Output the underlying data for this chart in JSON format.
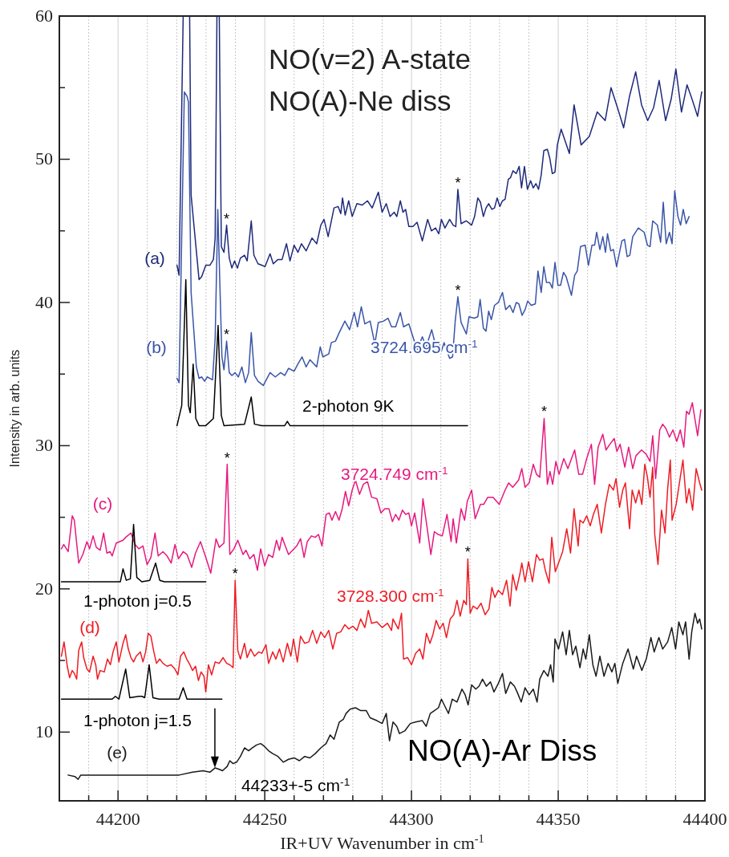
{
  "chart_data": {
    "type": "line",
    "title": "NO(v=2)  A-state",
    "subtitle": "NO(A)-Ne diss",
    "xlabel": "IR+UV Wavenumber in cm$^{-1}$",
    "ylabel": "Intensity in arb. units",
    "xlim": [
      44180,
      44400
    ],
    "xticks": [
      {
        "value": 44190,
        "label": null
      },
      44200,
      {
        "value": 44210,
        "label": null
      },
      {
        "value": 44220,
        "label": null
      },
      {
        "value": 44230,
        "label": null
      },
      {
        "value": 44240,
        "label": null
      },
      44250,
      {
        "value": 44260,
        "label": null
      },
      {
        "value": 44270,
        "label": null
      },
      {
        "value": 44280,
        "label": null
      },
      {
        "value": 44290,
        "label": null
      },
      44300,
      {
        "value": 44310,
        "label": null
      },
      {
        "value": 44320,
        "label": null
      },
      {
        "value": 44330,
        "label": null
      },
      {
        "value": 44340,
        "label": null
      },
      44350,
      {
        "value": 44360,
        "label": null
      },
      {
        "value": 44370,
        "label": null
      },
      {
        "value": 44380,
        "label": null
      },
      {
        "value": 44390,
        "label": null
      },
      44400
    ],
    "ylim": [
      5.2,
      60
    ],
    "yticks": [
      10,
      {
        "value": 15,
        "label": null
      },
      20,
      {
        "value": 25,
        "label": null
      },
      30,
      {
        "value": 35,
        "label": null
      },
      40,
      {
        "value": 45,
        "label": null
      },
      50,
      {
        "value": 55,
        "label": null
      },
      60
    ],
    "grid": "x",
    "line_style": "solid",
    "marker": "none",
    "series": [
      {
        "name": "(a)",
        "color": "#1f2a7a",
        "x": [
          44220.1,
          44220.8,
          44222.2,
          44224.4,
          44224.9,
          44227.6,
          44228.5,
          44229.9,
          44231.3,
          44232.5,
          44233.1,
          44233.7,
          44234.5,
          44235.2,
          44236.1,
          44237.0,
          44237.9,
          44238.8,
          44239.7,
          44240.7,
          44241.7,
          44243.1,
          44244.0,
          44245.4,
          44246.3,
          44247.7,
          44249.0,
          44250.1,
          44251.8,
          44252.9,
          44254.5,
          44255.9,
          44257.4,
          44258.6,
          44260.0,
          44261.3,
          44262.5,
          44264.1,
          44266.1,
          44267.7,
          44269.1,
          44270.2,
          44271.6,
          44273.6,
          44275.0,
          44275.9,
          44276.5,
          44277.4,
          44278.6,
          44279.8,
          44281.4,
          44283.2,
          44285.0,
          44286.6,
          44288.7,
          44290.0,
          44291.4,
          44292.7,
          44294.1,
          44295.0,
          44296.2,
          44297.1,
          44298.0,
          44299.1,
          44300.5,
          44301.9,
          44303.7,
          44305.5,
          44306.8,
          44308.2,
          44309.3,
          44310.2,
          44311.4,
          44313.0,
          44314.2,
          44315.1,
          44315.8,
          44316.9,
          44318.7,
          44320.5,
          44321.5,
          44322.6,
          44323.5,
          44324.5,
          44325.4,
          44326.3,
          44327.4,
          44328.3,
          44329.2,
          44330.1,
          44331.0,
          44331.9,
          44333.0,
          44333.7,
          44334.6,
          44335.7,
          44336.7,
          44337.5,
          44338.5,
          44339.5,
          44340.6,
          44341.5,
          44342.4,
          44343.3,
          44344.2,
          44345.1,
          44346.3,
          44347.1,
          44348.0,
          44348.9,
          44349.7,
          44351.0,
          44353.8,
          44355.4,
          44357.8,
          44360.6,
          44363.3,
          44366.0,
          44368.0,
          44370.2,
          44372.3,
          44374.3,
          44376.4,
          44378.4,
          44380.5,
          44382.5,
          44384.4,
          44386.6,
          44388.5,
          44390.1,
          44392.0,
          44393.9,
          44395.6,
          44397.5,
          44398.9
        ],
        "values": [
          42.6,
          41.9,
          60,
          60,
          47.5,
          41.6,
          41.8,
          42.6,
          42.6,
          43.0,
          44.5,
          60,
          60,
          43.9,
          43.5,
          45.4,
          43.1,
          42.4,
          42.9,
          42.4,
          43.1,
          43.3,
          42.9,
          45.7,
          43.3,
          42.7,
          42.6,
          42.5,
          43.4,
          42.7,
          43.0,
          43.0,
          44.1,
          42.9,
          44.0,
          43.5,
          44.1,
          43.6,
          44.5,
          44.1,
          45.4,
          45.8,
          44.6,
          46.6,
          46.7,
          46.2,
          47.3,
          46.1,
          47.1,
          46.0,
          46.9,
          46.8,
          47.1,
          46.6,
          47.7,
          46.3,
          46.9,
          46.0,
          46.3,
          46.0,
          47.1,
          46.3,
          46.5,
          45.3,
          45.3,
          45.6,
          44.3,
          45.8,
          45.0,
          45.2,
          44.8,
          45.8,
          45.2,
          45.8,
          45.4,
          45.3,
          47.9,
          45.5,
          45.7,
          45.4,
          46.0,
          47.3,
          47.0,
          46.0,
          46.6,
          46.9,
          46.5,
          46.6,
          47.3,
          46.7,
          47.1,
          47.2,
          48.6,
          48.7,
          49.2,
          49.0,
          49.5,
          48.0,
          49.5,
          47.9,
          48.5,
          48.0,
          48.3,
          47.9,
          48.9,
          50.6,
          50.7,
          50.1,
          49.0,
          49.1,
          51.0,
          52.1,
          50.4,
          53.8,
          51.0,
          51.6,
          53.3,
          52.7,
          55.0,
          53.6,
          52.2,
          54.4,
          56.1,
          53.8,
          52.7,
          53.6,
          55.5,
          52.7,
          54.2,
          56.3,
          53.3,
          55.2,
          54.2,
          53.0,
          54.7
        ]
      },
      {
        "name": "(b)",
        "color": "#3a55a8",
        "x": [
          44220.1,
          44220.8,
          44222.6,
          44223.5,
          44224.0,
          44224.9,
          44226.7,
          44227.6,
          44228.5,
          44229.5,
          44230.4,
          44232.2,
          44233.1,
          44234.0,
          44234.7,
          44235.4,
          44236.1,
          44237.0,
          44237.9,
          44238.8,
          44239.9,
          44241.0,
          44242.2,
          44243.4,
          44244.5,
          44245.4,
          44246.5,
          44247.7,
          44249.5,
          44251.8,
          44253.6,
          44255.4,
          44256.8,
          44258.1,
          44260.0,
          44261.3,
          44262.7,
          44264.1,
          44265.4,
          44267.7,
          44268.9,
          44269.8,
          44271.8,
          44272.7,
          44274.1,
          44275.4,
          44277.3,
          44278.9,
          44280.5,
          44281.6,
          44282.9,
          44284.1,
          44285.9,
          44287.5,
          44288.7,
          44290.5,
          44292.0,
          44293.2,
          44294.6,
          44296.2,
          44297.3,
          44299.1,
          44301.9,
          44303.7,
          44305.0,
          44306.9,
          44308.2,
          44309.3,
          44310.2,
          44311.1,
          44312.1,
          44313.0,
          44314.0,
          44314.9,
          44315.8,
          44316.9,
          44318.7,
          44319.6,
          44321.4,
          44322.6,
          44323.4,
          44324.5,
          44325.4,
          44326.3,
          44327.2,
          44328.3,
          44329.6,
          44331.0,
          44332.1,
          44333.5,
          44334.6,
          44335.7,
          44336.6,
          44337.7,
          44338.7,
          44339.6,
          44340.8,
          44342.2,
          44343.1,
          44344.2,
          44345.1,
          44346.0,
          44347.1,
          44348.0,
          44348.9,
          44349.9,
          44350.8,
          44351.8,
          44352.7,
          44354.5,
          44355.6,
          44356.5,
          44357.6,
          44359.2,
          44360.3,
          44361.5,
          44362.4,
          44363.1,
          44364.2,
          44365.2,
          44366.1,
          44366.8,
          44367.9,
          44368.8,
          44369.9,
          44371.7,
          44372.6,
          44373.5,
          44374.4,
          44375.4,
          44377.3,
          44379.3,
          44380.4,
          44381.3,
          44382.2,
          44383.8,
          44384.9,
          44385.8,
          44386.8,
          44387.9,
          44388.8,
          44389.7,
          44390.8,
          44391.7,
          44392.6,
          44393.6,
          44394.6
        ],
        "values": [
          34.7,
          34.4,
          54.7,
          54.4,
          54.0,
          40.7,
          35.5,
          34.7,
          34.8,
          34.5,
          34.8,
          34.6,
          37.5,
          46.5,
          41.3,
          36.2,
          35.3,
          37.3,
          35.1,
          34.9,
          35.1,
          34.8,
          35.5,
          34.4,
          35.1,
          37.9,
          34.9,
          34.5,
          34.2,
          35.1,
          34.8,
          35.1,
          34.9,
          35.4,
          35.2,
          35.7,
          36.2,
          35.5,
          36.0,
          35.5,
          36.9,
          36.2,
          36.4,
          37.2,
          37.3,
          37.9,
          38.7,
          38.1,
          39.3,
          38.3,
          39.7,
          38.5,
          38.7,
          37.1,
          38.6,
          38.7,
          38.9,
          38.3,
          38.3,
          39.3,
          38.3,
          38.5,
          36.7,
          37.6,
          36.9,
          38.1,
          37.0,
          37.2,
          36.6,
          37.2,
          36.6,
          36.1,
          36.2,
          38.7,
          40.4,
          38.6,
          37.8,
          39.0,
          38.9,
          39.0,
          40.2,
          38.2,
          38.0,
          39.4,
          38.8,
          39.8,
          40.0,
          40.7,
          39.5,
          39.8,
          39.3,
          40.0,
          39.9,
          39.1,
          39.5,
          40.1,
          39.8,
          39.9,
          42.2,
          40.7,
          42.5,
          41.4,
          41.4,
          41.0,
          42.8,
          41.2,
          41.2,
          42.1,
          41.8,
          40.5,
          41.9,
          42.2,
          43.9,
          44.0,
          42.6,
          44.0,
          44.0,
          44.9,
          43.7,
          44.6,
          43.5,
          44.8,
          43.6,
          43.7,
          42.5,
          44.3,
          44.4,
          43.2,
          43.3,
          44.6,
          45.2,
          44.9,
          44.0,
          43.9,
          45.7,
          45.4,
          44.2,
          47.0,
          44.1,
          44.9,
          44.1,
          47.8,
          46.0,
          45.4,
          46.5,
          45.5,
          46.0
        ]
      },
      {
        "name": "2-photon 9K",
        "color": "#000000",
        "x": [
          44220.1,
          44221.7,
          44223.1,
          44224.0,
          44224.6,
          44225.6,
          44226.5,
          44227.6,
          44229.9,
          44232.5,
          44234.1,
          44235.2,
          44236.1,
          44243.1,
          44245.4,
          44246.5,
          44249.0,
          44256.8,
          44257.7,
          44258.6,
          44319.1
        ],
        "values": [
          31.4,
          32.8,
          41.6,
          32.8,
          32.3,
          35.7,
          31.9,
          31.4,
          31.4,
          31.9,
          38.4,
          32.1,
          31.4,
          31.5,
          33.4,
          31.5,
          31.4,
          31.4,
          31.7,
          31.4,
          31.4
        ]
      },
      {
        "name": "(c)",
        "color": "#e6197f",
        "x": [
          44180.7,
          44181.5,
          44183.0,
          44184.4,
          44185.1,
          44186.6,
          44188.0,
          44189.4,
          44190.3,
          44191.5,
          44192.6,
          44193.9,
          44195.1,
          44196.2,
          44197.3,
          44198.0,
          44199.4,
          44201.7,
          44202.6,
          44204.4,
          44205.8,
          44207.1,
          44208.5,
          44209.9,
          44211.2,
          44212.6,
          44213.7,
          44215.3,
          44216.7,
          44218.1,
          44219.4,
          44220.6,
          44222.2,
          44223.5,
          44225.1,
          44226.4,
          44228.1,
          44229.9,
          44231.6,
          44233.4,
          44234.5,
          44236.1,
          44237.2,
          44238.1,
          44239.5,
          44240.8,
          44242.6,
          44243.6,
          44244.9,
          44246.3,
          44247.5,
          44248.6,
          44250.0,
          44251.3,
          44252.7,
          44254.0,
          44255.0,
          44255.9,
          44256.8,
          44258.1,
          44259.5,
          44260.9,
          44262.2,
          44263.4,
          44264.5,
          44265.9,
          44267.2,
          44268.3,
          44269.5,
          44270.9,
          44272.0,
          44272.9,
          44274.1,
          44275.3,
          44276.4,
          44277.5,
          44278.6,
          44279.8,
          44280.9,
          44282.3,
          44283.6,
          44285.0,
          44286.4,
          44288.2,
          44289.6,
          44290.9,
          44292.3,
          44293.5,
          44294.6,
          44295.7,
          44296.9,
          44298.0,
          44299.1,
          44300.0,
          44301.1,
          44302.8,
          44303.9,
          44305.1,
          44306.6,
          44307.8,
          44309.1,
          44310.5,
          44312.1,
          44313.5,
          44314.2,
          44315.3,
          44316.9,
          44318.1,
          44319.0,
          44320.5,
          44321.7,
          44323.5,
          44324.6,
          44326.0,
          44327.8,
          44329.9,
          44331.9,
          44333.1,
          44334.5,
          44336.5,
          44337.6,
          44338.7,
          44340.1,
          44341.5,
          44342.6,
          44343.7,
          44345.2,
          44346.3,
          44347.2,
          44348.1,
          44349.2,
          44350.3,
          44351.9,
          44353.3,
          44355.6,
          44357.0,
          44358.3,
          44359.7,
          44361.3,
          44362.4,
          44363.6,
          44365.2,
          44366.3,
          44367.6,
          44369.1,
          44370.0,
          44371.1,
          44372.7,
          44374.0,
          44375.4,
          44376.5,
          44378.4,
          44380.0,
          44381.3,
          44382.2,
          44383.2,
          44384.6,
          44385.6,
          44386.7,
          44387.9,
          44389.1,
          44390.4,
          44391.6,
          44392.8,
          44393.7,
          44394.6,
          44395.7,
          44397.5,
          44398.6
        ],
        "values": [
          22.8,
          23.1,
          22.6,
          25.1,
          24.8,
          21.8,
          22.4,
          23.3,
          22.8,
          23.7,
          22.9,
          22.7,
          23.9,
          22.5,
          22.6,
          22.3,
          23.2,
          23.4,
          23.6,
          23.9,
          23.1,
          22.8,
          23.0,
          21.7,
          22.2,
          23.9,
          22.3,
          22.6,
          22.3,
          21.8,
          23.1,
          22.1,
          22.6,
          22.4,
          21.5,
          22.5,
          23.3,
          22.2,
          21.1,
          23.5,
          22.9,
          23.2,
          28.7,
          22.4,
          22.8,
          23.4,
          22.4,
          22.7,
          22.1,
          22.4,
          21.3,
          22.8,
          21.6,
          22.4,
          22.2,
          23.4,
          22.7,
          23.6,
          23.1,
          22.4,
          22.7,
          23.0,
          23.5,
          22.2,
          23.3,
          23.7,
          23.6,
          23.8,
          23.0,
          25.2,
          25.3,
          24.8,
          25.4,
          24.8,
          25.6,
          26.8,
          25.8,
          26.9,
          27.6,
          26.6,
          27.3,
          27.5,
          26.4,
          26.3,
          25.3,
          25.6,
          25.6,
          24.7,
          25.2,
          24.8,
          25.5,
          25.2,
          25.3,
          24.4,
          25.3,
          23.2,
          26.3,
          24.6,
          22.4,
          24.0,
          23.8,
          23.7,
          25.2,
          23.3,
          24.9,
          23.2,
          25.6,
          24.8,
          26.1,
          26.9,
          24.9,
          25.9,
          25.9,
          26.4,
          26.4,
          25.9,
          26.9,
          27.4,
          27.1,
          27.6,
          28.4,
          27.1,
          27.4,
          28.7,
          28.0,
          27.8,
          31.9,
          27.3,
          28.2,
          27.3,
          28.9,
          28.0,
          29.1,
          28.4,
          29.7,
          28.0,
          28.0,
          29.1,
          30.1,
          27.3,
          29.9,
          30.8,
          29.7,
          30.1,
          30.5,
          29.6,
          30.1,
          28.5,
          29.9,
          28.4,
          29.3,
          29.7,
          29.4,
          28.9,
          30.7,
          27.7,
          31.1,
          31.5,
          31.2,
          30.6,
          31.1,
          30.3,
          31.1,
          29.9,
          32.4,
          32.2,
          33.0,
          30.7,
          32.5
        ]
      },
      {
        "name": "1-photon j=0.5",
        "color": "#000000",
        "x": [
          44180.7,
          44200.8,
          44201.7,
          44202.8,
          44204.2,
          44205.3,
          44206.4,
          44208.1,
          44210.8,
          44212.8,
          44214.2,
          44215.8,
          44229.9
        ],
        "values": [
          20.5,
          20.5,
          21.4,
          20.6,
          20.7,
          24.5,
          20.8,
          20.5,
          20.6,
          21.8,
          20.6,
          20.5,
          20.5
        ]
      },
      {
        "name": "(d)",
        "color": "#ee1c24",
        "x": [
          44180.7,
          44181.6,
          44182.7,
          44183.5,
          44184.4,
          44185.1,
          44185.9,
          44186.6,
          44187.6,
          44188.3,
          44189.4,
          44190.3,
          44191.5,
          44192.4,
          44193.0,
          44193.9,
          44195.3,
          44196.4,
          44197.4,
          44198.3,
          44199.4,
          44200.3,
          44201.7,
          44202.6,
          44203.5,
          44204.4,
          44205.3,
          44206.2,
          44207.6,
          44208.5,
          44209.4,
          44210.3,
          44211.2,
          44212.2,
          44213.1,
          44214.2,
          44215.3,
          44216.7,
          44218.1,
          44219.4,
          44220.4,
          44221.3,
          44222.4,
          44223.4,
          44224.5,
          44225.4,
          44226.4,
          44227.4,
          44228.3,
          44229.3,
          44229.9,
          44230.8,
          44231.9,
          44233.1,
          44234.5,
          44235.8,
          44237.0,
          44238.1,
          44239.2,
          44239.9,
          44240.8,
          44241.7,
          44243.1,
          44244.0,
          44245.2,
          44246.5,
          44247.9,
          44249.0,
          44250.4,
          44251.3,
          44252.7,
          44253.8,
          44255.0,
          44256.3,
          44257.7,
          44258.9,
          44259.8,
          44261.1,
          44262.2,
          44263.6,
          44265.0,
          44266.3,
          44267.7,
          44269.1,
          44270.4,
          44271.8,
          44273.2,
          44274.5,
          44275.9,
          44277.3,
          44278.6,
          44280.0,
          44281.4,
          44282.7,
          44284.1,
          44285.3,
          44286.4,
          44288.2,
          44290.0,
          44291.8,
          44293.2,
          44293.7,
          44295.5,
          44296.6,
          44297.3,
          44298.7,
          44300.0,
          44301.4,
          44302.8,
          44303.9,
          44305.1,
          44306.3,
          44307.3,
          44308.4,
          44309.6,
          44310.8,
          44311.9,
          44313.2,
          44314.4,
          44315.5,
          44316.6,
          44317.8,
          44318.7,
          44319.2,
          44320.0,
          44321.0,
          44322.4,
          44323.7,
          44325.1,
          44326.4,
          44327.4,
          44328.4,
          44329.6,
          44331.0,
          44332.4,
          44333.6,
          44334.5,
          44335.7,
          44336.9,
          44337.6,
          44338.7,
          44339.9,
          44341.2,
          44342.6,
          44343.7,
          44344.8,
          44345.6,
          44346.9,
          44347.8,
          44349.0,
          44350.1,
          44351.5,
          44352.9,
          44354.2,
          44355.4,
          44356.8,
          44357.4,
          44358.5,
          44359.7,
          44360.9,
          44362.0,
          44363.3,
          44364.7,
          44366.1,
          44367.4,
          44368.8,
          44369.7,
          44370.9,
          44372.0,
          44372.9,
          44374.3,
          44375.2,
          44376.4,
          44377.5,
          44378.5,
          44379.5,
          44380.4,
          44381.3,
          44382.2,
          44382.9,
          44384.0,
          44385.2,
          44386.4,
          44387.3,
          44388.2,
          44388.8,
          44390.2,
          44391.3,
          44392.5,
          44393.7,
          44394.6,
          44395.8,
          44397.0,
          44398.2,
          44398.9
        ],
        "values": [
          15.3,
          16.3,
          14.6,
          13.8,
          14.3,
          14.1,
          13.7,
          15.7,
          16.3,
          15.2,
          14.4,
          14.2,
          15.3,
          14.7,
          13.7,
          14.3,
          14.2,
          15.1,
          14.7,
          15.6,
          16.3,
          14.9,
          16.2,
          16.8,
          15.8,
          15.2,
          14.9,
          15.3,
          15.6,
          14.9,
          15.6,
          16.9,
          16.7,
          15.6,
          14.8,
          15.1,
          14.8,
          14.6,
          14.7,
          14.4,
          14.0,
          15.3,
          15.6,
          15.1,
          14.7,
          14.3,
          14.6,
          13.6,
          14.2,
          13.9,
          12.8,
          14.7,
          14.0,
          14.9,
          14.8,
          15.2,
          14.8,
          14.7,
          14.5,
          20.6,
          15.7,
          15.1,
          16.2,
          15.2,
          15.8,
          15.3,
          15.6,
          15.5,
          16.1,
          14.8,
          15.6,
          15.1,
          15.8,
          14.9,
          16.2,
          15.3,
          16.5,
          14.9,
          16.7,
          16.2,
          16.3,
          17.1,
          16.2,
          17.0,
          16.6,
          17.1,
          15.8,
          16.9,
          17.0,
          17.5,
          17.2,
          17.4,
          17.1,
          17.9,
          17.3,
          18.5,
          17.6,
          17.7,
          17.3,
          17.6,
          17.1,
          17.9,
          17.2,
          18.3,
          15.1,
          15.2,
          14.7,
          15.5,
          15.8,
          15.1,
          16.9,
          16.2,
          16.8,
          17.8,
          17.2,
          17.6,
          16.6,
          17.9,
          18.2,
          19.2,
          18.1,
          19.2,
          18.9,
          22.1,
          18.3,
          18.8,
          18.6,
          19.0,
          18.2,
          18.6,
          20.1,
          19.4,
          19.9,
          19.6,
          20.6,
          18.8,
          21.0,
          19.9,
          21.0,
          21.8,
          20.5,
          21.9,
          20.5,
          22.4,
          22.0,
          22.1,
          21.3,
          20.4,
          23.6,
          21.2,
          21.8,
          22.6,
          24.2,
          22.5,
          25.6,
          23.0,
          24.8,
          24.6,
          25.1,
          24.4,
          25.2,
          25.9,
          23.9,
          25.9,
          27.3,
          26.9,
          27.7,
          25.7,
          26.9,
          27.4,
          24.2,
          26.9,
          26.0,
          26.9,
          25.9,
          28.7,
          27.8,
          26.4,
          28.5,
          23.8,
          21.7,
          25.5,
          23.9,
          27.0,
          29.0,
          24.8,
          25.9,
          27.4,
          29.0,
          26.0,
          27.0,
          25.5,
          28.4,
          27.4,
          26.9
        ]
      },
      {
        "name": "1-photon j=1.5",
        "color": "#000000",
        "x": [
          44180.7,
          44198.0,
          44199.1,
          44200.3,
          44202.6,
          44204.0,
          44207.1,
          44208.2,
          44209.1,
          44210.6,
          44211.9,
          44214.0,
          44220.8,
          44222.2,
          44223.5,
          44235.4
        ],
        "values": [
          12.3,
          12.3,
          12.5,
          12.3,
          14.4,
          12.4,
          12.5,
          12.5,
          12.4,
          14.7,
          12.4,
          12.3,
          12.3,
          13.1,
          12.3,
          12.3
        ]
      },
      {
        "name": "(e)",
        "color": "#1a1a1a",
        "x": [
          44183.0,
          44185.3,
          44186.4,
          44187.3,
          44193.5,
          44202.6,
          44211.7,
          44220.8,
          44225.4,
          44229.0,
          44231.3,
          44233.1,
          44234.5,
          44235.6,
          44237.2,
          44238.1,
          44239.2,
          44240.4,
          44241.7,
          44243.1,
          44244.5,
          44245.8,
          44247.2,
          44248.6,
          44249.9,
          44251.3,
          44252.7,
          44254.5,
          44256.3,
          44258.1,
          44260.0,
          44261.8,
          44263.6,
          44265.4,
          44267.2,
          44269.1,
          44270.9,
          44272.3,
          44273.6,
          44275.4,
          44276.8,
          44277.7,
          44279.1,
          44280.9,
          44282.7,
          44284.6,
          44285.9,
          44288.2,
          44290.0,
          44291.4,
          44292.5,
          44293.7,
          44295.0,
          44295.9,
          44297.8,
          44299.6,
          44301.4,
          44303.7,
          44305.0,
          44306.4,
          44307.8,
          44309.2,
          44310.2,
          44311.4,
          44312.6,
          44313.9,
          44315.5,
          44317.2,
          44318.3,
          44319.3,
          44320.5,
          44321.9,
          44323.0,
          44324.2,
          44325.5,
          44326.9,
          44328.1,
          44329.6,
          44331.0,
          44332.1,
          44333.7,
          44335.1,
          44336.0,
          44337.4,
          44338.7,
          44340.1,
          44341.5,
          44342.8,
          44343.7,
          44345.1,
          44346.5,
          44347.4,
          44348.3,
          44348.9,
          44350.1,
          44351.5,
          44352.7,
          44353.8,
          44354.9,
          44356.0,
          44357.4,
          44358.5,
          44359.4,
          44360.6,
          44361.8,
          44362.9,
          44364.2,
          44365.6,
          44367.0,
          44368.3,
          44369.3,
          44370.3,
          44372.0,
          44373.8,
          44375.6,
          44376.7,
          44378.5,
          44380.0,
          44381.6,
          44382.7,
          44384.3,
          44385.6,
          44387.3,
          44388.7,
          44390.0,
          44391.1,
          44392.5,
          44393.4,
          44394.6,
          44395.5,
          44396.6,
          44397.5,
          44398.2,
          44398.9
        ],
        "values": [
          7.0,
          6.9,
          6.7,
          7.0,
          7.0,
          7.0,
          7.0,
          7.0,
          7.2,
          7.3,
          7.2,
          7.5,
          7.4,
          7.3,
          7.6,
          8.0,
          7.8,
          7.9,
          8.3,
          8.9,
          8.7,
          8.9,
          9.1,
          9.2,
          9.0,
          8.7,
          8.5,
          8.3,
          7.9,
          8.1,
          8.2,
          8.0,
          8.3,
          8.2,
          8.5,
          8.9,
          9.2,
          9.8,
          9.5,
          10.7,
          10.9,
          11.3,
          11.6,
          11.7,
          11.5,
          11.5,
          11.0,
          10.8,
          10.6,
          11.3,
          9.4,
          10.7,
          10.4,
          9.9,
          10.1,
          10.6,
          10.7,
          10.8,
          10.4,
          11.3,
          11.5,
          11.7,
          12.3,
          11.8,
          11.3,
          12.3,
          12.1,
          13.0,
          12.6,
          11.9,
          13.3,
          13.0,
          13.2,
          13.7,
          13.2,
          13.5,
          12.8,
          13.4,
          14.1,
          12.7,
          13.5,
          13.2,
          12.8,
          12.1,
          13.1,
          12.6,
          13.0,
          12.1,
          13.7,
          14.3,
          13.9,
          14.7,
          13.5,
          16.5,
          15.8,
          17.0,
          15.4,
          17.1,
          15.4,
          16.0,
          14.5,
          15.8,
          15.1,
          16.8,
          14.7,
          13.9,
          15.3,
          13.9,
          14.8,
          14.2,
          14.8,
          13.4,
          14.8,
          15.8,
          14.4,
          15.3,
          14.3,
          15.1,
          16.6,
          15.6,
          16.6,
          15.8,
          16.3,
          17.3,
          15.8,
          17.7,
          16.8,
          17.7,
          15.1,
          17.0,
          18.3,
          17.6,
          17.9,
          17.2
        ]
      }
    ],
    "annotations": [
      "3724.695 cm$^{-1}$",
      "3724.749 cm$^{-1}$",
      "3728.300 cm$^{-1}$",
      "NO(A)-Ar Diss",
      {
        "text": "*",
        "x": 44237.0,
        "y": 45.4
      },
      {
        "text": "*",
        "x": 44315.8,
        "y": 47.9
      },
      {
        "text": "*",
        "x": 44237.0,
        "y": 37.3
      },
      {
        "text": "*",
        "x": 44315.8,
        "y": 40.4
      },
      {
        "text": "*",
        "x": 44237.2,
        "y": 28.7
      },
      {
        "text": "*",
        "x": 44345.2,
        "y": 31.9
      },
      {
        "text": "*",
        "x": 44239.9,
        "y": 20.6
      },
      {
        "text": "*",
        "x": 44319.2,
        "y": 22.1
      },
      {
        "text": "44233+-5 cm$^{-1}$",
        "x": 44233,
        "y": 7.4
      }
    ]
  }
}
